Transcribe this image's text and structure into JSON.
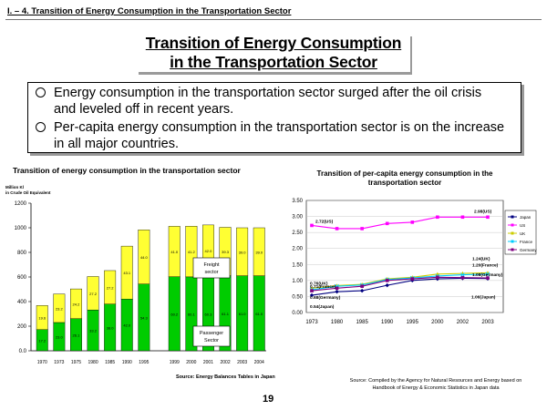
{
  "header": "I. – 4. Transition of Energy Consumption in the Transportation Sector",
  "title_line1": "Transition of Energy Consumption",
  "title_line2": "in the Transportation Sector",
  "bullets": [
    "Energy consumption in the transportation sector surged after the oil crisis and leveled off in recent years.",
    "Per-capita energy consumption in the transportation sector is on the increase in all major countries."
  ],
  "page_number": "19",
  "colors": {
    "freight": "#FFFF33",
    "passenger": "#00CC00",
    "japan": "#000080",
    "us": "#FF00FF",
    "uk": "#CCCC00",
    "france": "#00CCFF",
    "germany": "#800080"
  },
  "chart_data": [
    {
      "type": "bar",
      "title": "Transition of energy consumption in the transportation sector",
      "ylabel": "Million Kl in Crude Oil Equivalent",
      "ylim": [
        0,
        1200
      ],
      "yticks": [
        "0.0",
        "200",
        "400",
        "600",
        "800",
        "1000",
        "1200"
      ],
      "categories": [
        "1970",
        "1973",
        "1975",
        "1980",
        "1985",
        "1990",
        "1995",
        "1999",
        "2000",
        "2001",
        "2002",
        "2003",
        "2004"
      ],
      "series": [
        {
          "name": "Passenger Sector",
          "values": [
            172,
            230,
            261,
            332,
            380,
            420,
            543,
            602,
            601,
            603,
            611,
            610,
            610
          ],
          "labels": [
            "17.2",
            "23.0",
            "26.1",
            "33.2",
            "38.0",
            "42.0",
            "54.3",
            "60.2",
            "60.1",
            "60.3",
            "61.1",
            "61.0",
            "61.0"
          ]
        },
        {
          "name": "Freight sector",
          "values": [
            196,
            232,
            242,
            272,
            272,
            431,
            440,
            410,
            412,
            420,
            393,
            390,
            390
          ],
          "labels": [
            "19.6",
            "23.2",
            "24.2",
            "27.2",
            "27.2",
            "43.1",
            "44.0",
            "41.0",
            "41.2",
            "42.0",
            "39.3",
            "39.0",
            "39.0"
          ]
        }
      ],
      "annotations": {
        "freight": "Freight sector",
        "passenger": "Passenger Sector"
      },
      "source": "Source: Energy Balances Tables in Japan"
    },
    {
      "type": "line",
      "title": "Transition of per-capita energy consumption in the transportation sector",
      "x": [
        "1973",
        "1980",
        "1985",
        "1990",
        "1995",
        "2000",
        "2002",
        "2003"
      ],
      "ylim": [
        0,
        3.5
      ],
      "yticks": [
        "0.00",
        "0.50",
        "1.00",
        "1.50",
        "2.00",
        "2.50",
        "3.00",
        "3.50"
      ],
      "series": [
        {
          "name": "Japan",
          "values": [
            0.54,
            0.65,
            0.68,
            0.85,
            1.0,
            1.05,
            1.07,
            1.06
          ]
        },
        {
          "name": "US",
          "values": [
            2.72,
            2.62,
            2.62,
            2.78,
            2.82,
            2.98,
            2.98,
            2.98
          ]
        },
        {
          "name": "UK",
          "values": [
            0.76,
            0.84,
            0.88,
            1.05,
            1.1,
            1.2,
            1.22,
            1.24
          ]
        },
        {
          "name": "France",
          "values": [
            0.71,
            0.82,
            0.86,
            1.03,
            1.08,
            1.14,
            1.18,
            1.2
          ]
        },
        {
          "name": "Germany",
          "values": [
            0.68,
            0.76,
            0.82,
            1.0,
            1.05,
            1.1,
            1.09,
            1.08
          ]
        }
      ],
      "annotations": [
        "2.72(US)",
        "2.98(US)",
        "1.24(UK)",
        "1.20(France)",
        "1.08(Germany)",
        "0.76(UK)",
        "0.71(France)",
        "0.68(Germany)",
        "0.54(Japan)",
        "1.06(Japan)"
      ],
      "source": "Source: Compiled by the Agency for Natural Resources and Energy based on Handbook of Energy & Economic Statistics in Japan data"
    }
  ]
}
